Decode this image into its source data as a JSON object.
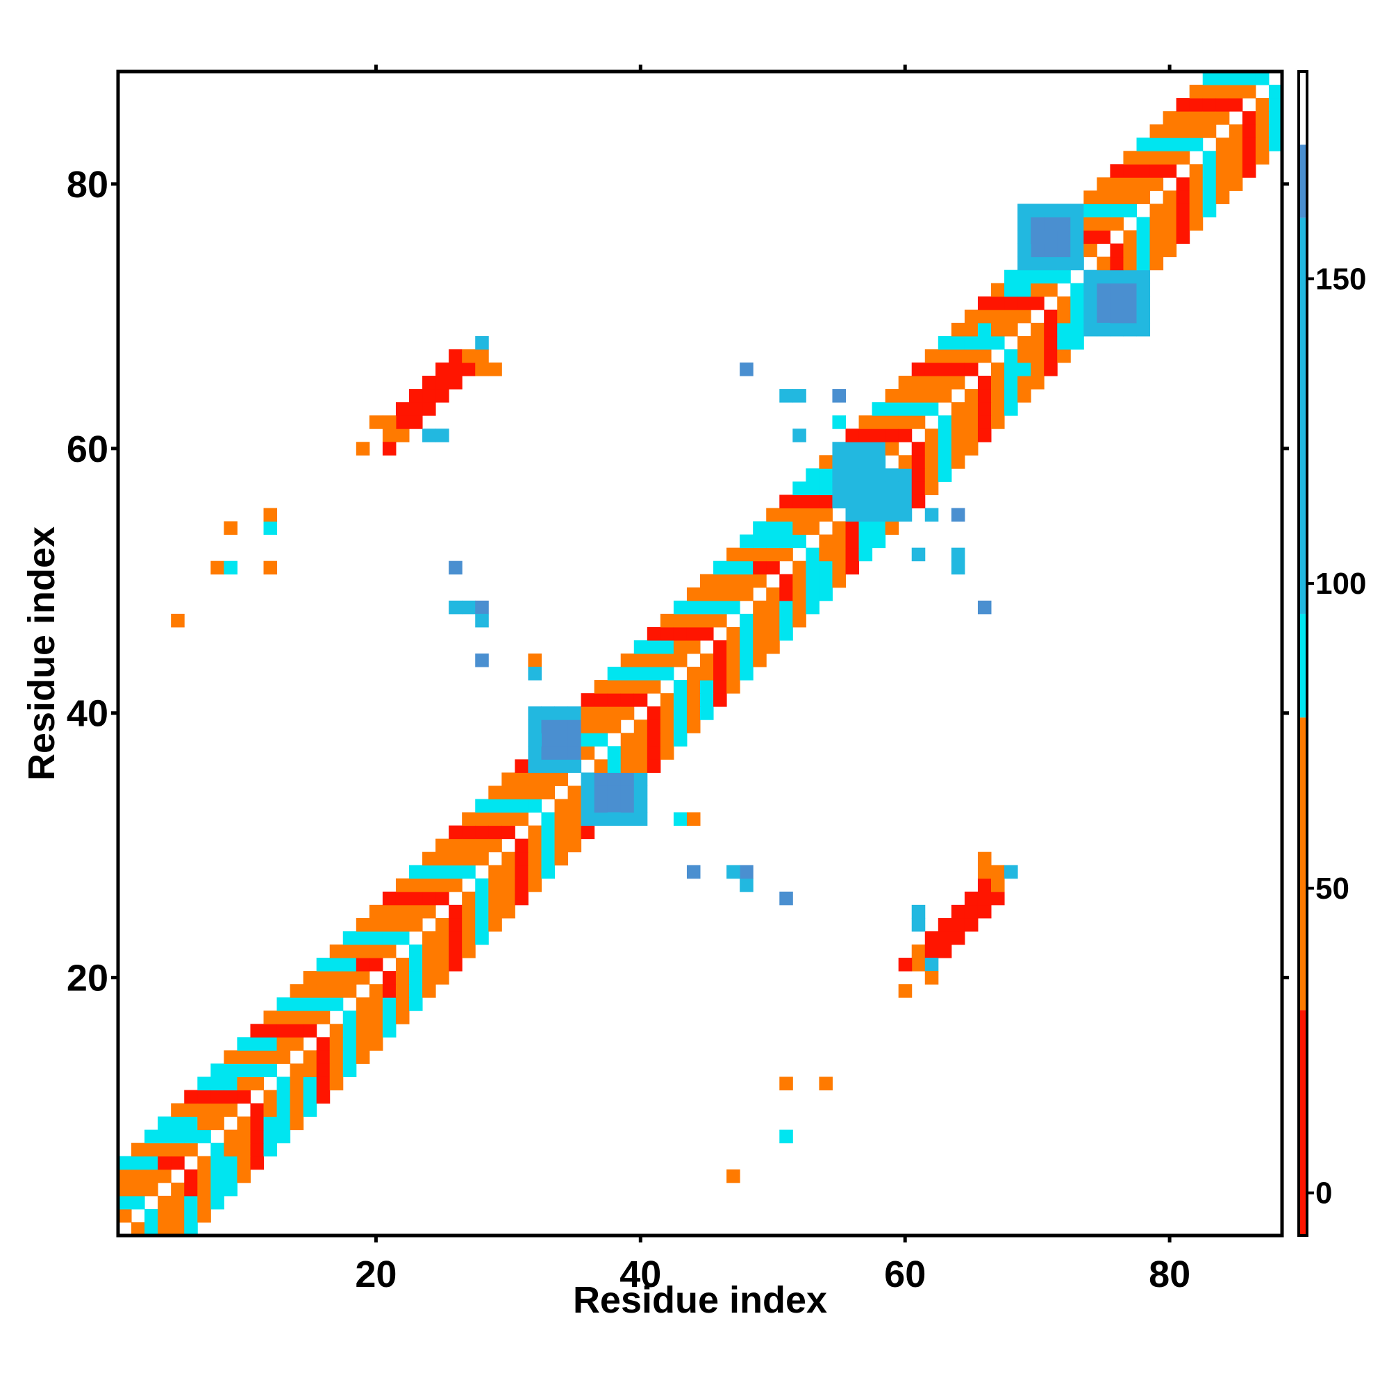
{
  "chart_data": {
    "type": "heatmap",
    "title": "",
    "xlabel": "Residue index",
    "ylabel": "Residue index",
    "xlim": [
      0.5,
      88.5
    ],
    "ylim": [
      0.5,
      88.5
    ],
    "xticks": [
      20,
      40,
      60,
      80
    ],
    "yticks": [
      20,
      40,
      60,
      80
    ],
    "grid": false,
    "colorbar": {
      "range": [
        -7,
        184
      ],
      "ticks": [
        0,
        50,
        100,
        150
      ],
      "segments": [
        {
          "from": -7,
          "to": 30,
          "color": "#ff1500"
        },
        {
          "from": 30,
          "to": 78,
          "color": "#ff7a00"
        },
        {
          "from": 78,
          "to": 95,
          "color": "#00e5f0"
        },
        {
          "from": 95,
          "to": 160,
          "color": "#22b8e0"
        },
        {
          "from": 160,
          "to": 172,
          "color": "#4a8fd0"
        },
        {
          "from": 172,
          "to": 184,
          "color": "#ffffff"
        }
      ]
    },
    "diagonal_pattern": {
      "from": 1,
      "to": 88,
      "offsets": [
        1,
        2,
        3,
        4,
        5
      ],
      "values_by_offset": [
        20,
        55,
        90,
        45,
        75
      ]
    },
    "helix_blocks": [
      {
        "i_from": 1,
        "i_to": 18,
        "min_offset": 3,
        "max_offset": 5,
        "value": 92
      },
      {
        "i_from": 40,
        "i_to": 58,
        "min_offset": 3,
        "max_offset": 5,
        "value": 92
      },
      {
        "i_from": 66,
        "i_to": 72,
        "min_offset": 3,
        "max_offset": 4,
        "value": 92
      }
    ],
    "contact_patches": [
      {
        "i_from": 32,
        "i_to": 35,
        "j_from": 36,
        "j_to": 40,
        "value": 140
      },
      {
        "i_from": 33,
        "i_to": 35,
        "j_from": 37,
        "j_to": 39,
        "value": 165
      },
      {
        "i_from": 69,
        "i_to": 73,
        "j_from": 74,
        "j_to": 78,
        "value": 140
      },
      {
        "i_from": 70,
        "i_to": 72,
        "j_from": 75,
        "j_to": 77,
        "value": 165
      },
      {
        "i_from": 55,
        "i_to": 58,
        "j_from": 56,
        "j_to": 60,
        "value": 130
      }
    ],
    "sheet_contacts": {
      "center_i": 24,
      "center_j": 64,
      "length": 7,
      "value": 10,
      "rim": [
        {
          "i": 20,
          "j": 62,
          "value": 60
        },
        {
          "i": 21,
          "j": 62,
          "value": 60
        },
        {
          "i": 21,
          "j": 61,
          "value": 60
        },
        {
          "i": 22,
          "j": 61,
          "value": 60
        },
        {
          "i": 27,
          "j": 67,
          "value": 55
        },
        {
          "i": 28,
          "j": 67,
          "value": 55
        },
        {
          "i": 28,
          "j": 66,
          "value": 55
        },
        {
          "i": 29,
          "j": 66,
          "value": 55
        },
        {
          "i": 28,
          "j": 68,
          "value": 95
        },
        {
          "i": 24,
          "j": 61,
          "value": 95
        },
        {
          "i": 25,
          "j": 61,
          "value": 95
        },
        {
          "i": 19,
          "j": 60,
          "value": 60
        }
      ]
    },
    "scattered_points": [
      {
        "i": 5,
        "j": 47,
        "value": 70
      },
      {
        "i": 8,
        "j": 51,
        "value": 60
      },
      {
        "i": 9,
        "j": 51,
        "value": 90
      },
      {
        "i": 9,
        "j": 54,
        "value": 60
      },
      {
        "i": 12,
        "j": 51,
        "value": 55
      },
      {
        "i": 12,
        "j": 54,
        "value": 90
      },
      {
        "i": 12,
        "j": 55,
        "value": 60
      },
      {
        "i": 26,
        "j": 51,
        "value": 165
      },
      {
        "i": 26,
        "j": 48,
        "value": 130
      },
      {
        "i": 27,
        "j": 48,
        "value": 130
      },
      {
        "i": 28,
        "j": 48,
        "value": 165
      },
      {
        "i": 28,
        "j": 47,
        "value": 130
      },
      {
        "i": 28,
        "j": 44,
        "value": 165
      },
      {
        "i": 32,
        "j": 44,
        "value": 70
      },
      {
        "i": 32,
        "j": 43,
        "value": 130
      },
      {
        "i": 48,
        "j": 66,
        "value": 165
      },
      {
        "i": 51,
        "j": 64,
        "value": 130
      },
      {
        "i": 52,
        "j": 64,
        "value": 130
      },
      {
        "i": 55,
        "j": 64,
        "value": 165
      },
      {
        "i": 55,
        "j": 62,
        "value": 90
      },
      {
        "i": 52,
        "j": 61,
        "value": 130
      },
      {
        "i": 47,
        "j": 5,
        "value": 70
      },
      {
        "i": 51,
        "j": 12,
        "value": 60
      },
      {
        "i": 54,
        "j": 12,
        "value": 70
      },
      {
        "i": 51,
        "j": 8,
        "value": 90
      },
      {
        "i": 51,
        "j": 26,
        "value": 165
      },
      {
        "i": 48,
        "j": 27,
        "value": 130
      },
      {
        "i": 48,
        "j": 28,
        "value": 165
      },
      {
        "i": 47,
        "j": 28,
        "value": 130
      },
      {
        "i": 44,
        "j": 28,
        "value": 165
      },
      {
        "i": 43,
        "j": 32,
        "value": 90
      },
      {
        "i": 44,
        "j": 32,
        "value": 70
      },
      {
        "i": 66,
        "j": 48,
        "value": 165
      },
      {
        "i": 64,
        "j": 51,
        "value": 130
      },
      {
        "i": 64,
        "j": 52,
        "value": 130
      },
      {
        "i": 64,
        "j": 55,
        "value": 165
      },
      {
        "i": 62,
        "j": 55,
        "value": 130
      },
      {
        "i": 61,
        "j": 52,
        "value": 130
      },
      {
        "i": 60,
        "j": 19,
        "value": 60
      },
      {
        "i": 62,
        "j": 21,
        "value": 95
      }
    ]
  }
}
